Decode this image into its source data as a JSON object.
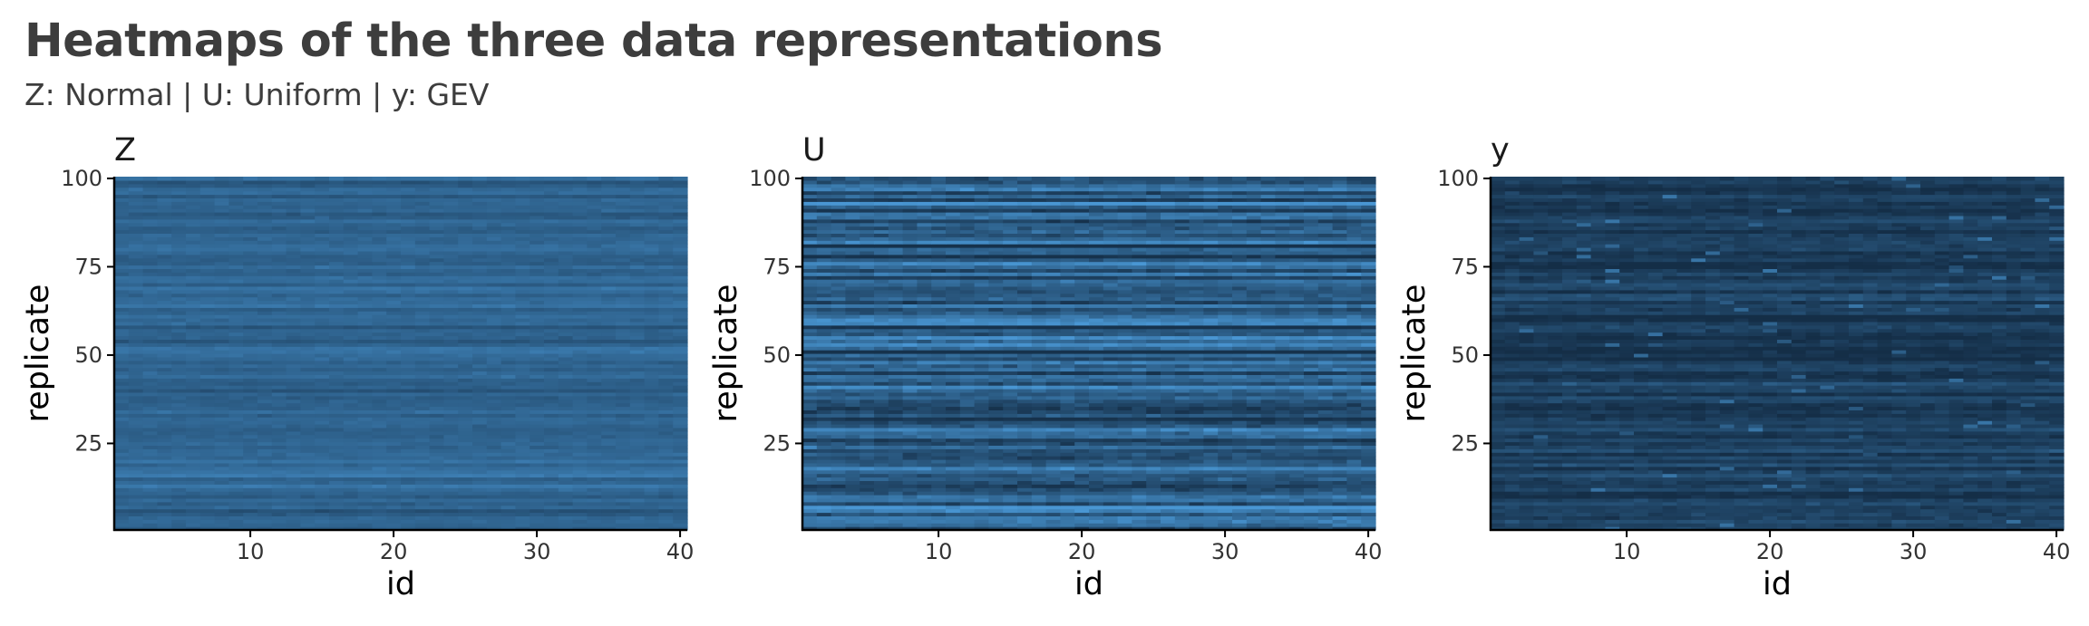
{
  "title": "Heatmaps of the three data representations",
  "subtitle": "Z: Normal | U: Uniform | y: GEV",
  "colors": {
    "low": "#132b43",
    "high": "#56b1f7",
    "axis": "#000000",
    "text": "#3d3d3d"
  },
  "chart_data": [
    {
      "type": "heatmap",
      "title": "Z",
      "xlabel": "id",
      "ylabel": "replicate",
      "x_range": [
        1,
        40
      ],
      "y_range": [
        1,
        100
      ],
      "x_ticks": [
        10,
        20,
        30,
        40
      ],
      "y_ticks": [
        25,
        50,
        75,
        100
      ],
      "distribution": "Normal",
      "grid": false,
      "legend": "none",
      "fill_level_range": [
        0.22,
        0.62
      ],
      "typical_fill_level": 0.44
    },
    {
      "type": "heatmap",
      "title": "U",
      "xlabel": "id",
      "ylabel": "replicate",
      "x_range": [
        1,
        40
      ],
      "y_range": [
        1,
        100
      ],
      "x_ticks": [
        10,
        20,
        30,
        40
      ],
      "y_ticks": [
        25,
        50,
        75,
        100
      ],
      "distribution": "Uniform",
      "grid": false,
      "legend": "none",
      "fill_level_range": [
        0.05,
        0.8
      ],
      "typical_fill_level": 0.42
    },
    {
      "type": "heatmap",
      "title": "y",
      "xlabel": "id",
      "ylabel": "replicate",
      "x_range": [
        1,
        40
      ],
      "y_range": [
        1,
        100
      ],
      "x_ticks": [
        10,
        20,
        30,
        40
      ],
      "y_ticks": [
        25,
        50,
        75,
        100
      ],
      "distribution": "GEV",
      "grid": false,
      "legend": "none",
      "fill_level_range": [
        0.02,
        0.55
      ],
      "typical_fill_level": 0.14
    }
  ]
}
